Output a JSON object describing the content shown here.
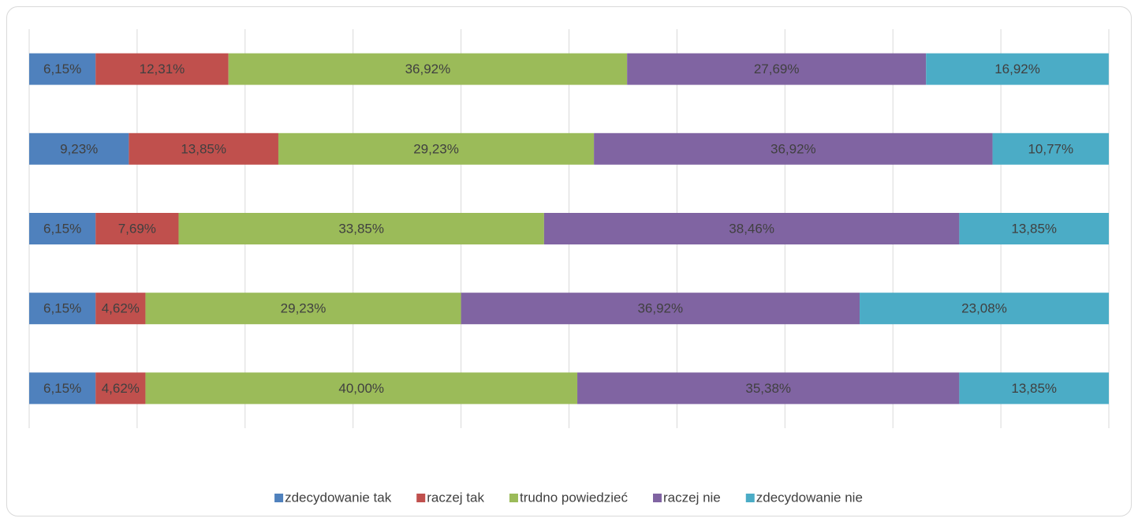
{
  "chart_data": {
    "type": "stacked-bar-horizontal",
    "categories": [
      null,
      null,
      null,
      null,
      null
    ],
    "series": [
      {
        "name": "zdecydowanie tak",
        "color": "#4f81bd",
        "values": [
          6.15,
          9.23,
          6.15,
          6.15,
          6.15
        ],
        "value_labels": [
          "6,15%",
          "9,23%",
          "6,15%",
          "6,15%",
          "6,15%"
        ]
      },
      {
        "name": "raczej tak",
        "color": "#c0504d",
        "values": [
          12.31,
          13.85,
          7.69,
          4.62,
          4.62
        ],
        "value_labels": [
          "12,31%",
          "13,85%",
          "7,69%",
          "4,62%",
          "4,62%"
        ]
      },
      {
        "name": "trudno powiedzieć",
        "color": "#9bbb59",
        "values": [
          36.92,
          29.23,
          33.85,
          29.23,
          40.0
        ],
        "value_labels": [
          "36,92%",
          "29,23%",
          "33,85%",
          "29,23%",
          "40,00%"
        ]
      },
      {
        "name": "raczej nie",
        "color": "#8064a2",
        "values": [
          27.69,
          36.92,
          38.46,
          36.92,
          35.38
        ],
        "value_labels": [
          "27,69%",
          "36,92%",
          "38,46%",
          "36,92%",
          "35,38%"
        ]
      },
      {
        "name": "zdecydowanie nie",
        "color": "#4bacc6",
        "values": [
          16.92,
          10.77,
          13.85,
          23.08,
          13.85
        ],
        "value_labels": [
          "16,92%",
          "10,77%",
          "13,85%",
          "23,08%",
          "13,85%"
        ]
      }
    ],
    "xlim": [
      0,
      100
    ],
    "xticks": [
      0,
      10,
      20,
      30,
      40,
      50,
      60,
      70,
      80,
      90,
      100
    ],
    "grid": true,
    "legend": "bottom"
  }
}
